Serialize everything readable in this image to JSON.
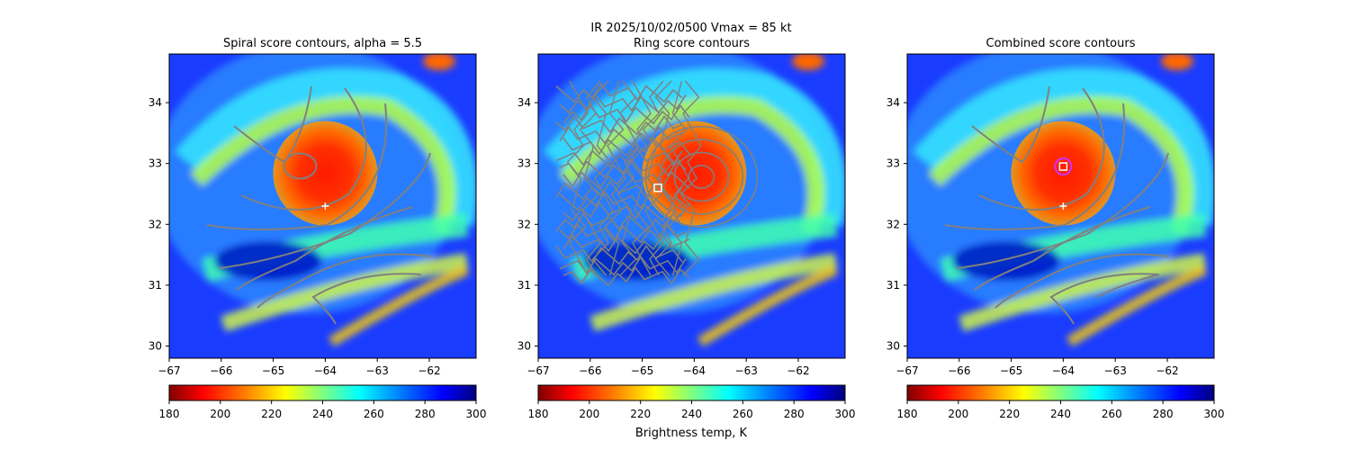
{
  "figure": {
    "suptitle_line1": "IR  2025/10/02/0500    Vmax = 85 kt",
    "colorbar_label": "Brightness temp, K"
  },
  "chart_data": [
    {
      "type": "heatmap",
      "title": "Spiral score contours, alpha =  5.5",
      "xlabel": "",
      "ylabel": "",
      "xlim": [
        -67,
        -61.1
      ],
      "ylim": [
        29.8,
        34.8
      ],
      "x_ticks": [
        -67,
        -66,
        -65,
        -64,
        -63,
        -62
      ],
      "y_ticks": [
        30,
        31,
        32,
        33,
        34
      ],
      "field": "IR brightness temperature (K)",
      "storm_center": [
        -64.0,
        32.9
      ],
      "markers": [
        {
          "kind": "plus",
          "x": -64.0,
          "y": 32.3,
          "color": "#ffffff"
        }
      ],
      "contour_color": "#808080",
      "colorbar": {
        "min": 180,
        "max": 300,
        "ticks": [
          180,
          200,
          220,
          240,
          260,
          280,
          300
        ],
        "colormap": "jet_r"
      }
    },
    {
      "type": "heatmap",
      "title": "Ring score contours",
      "xlabel": "",
      "ylabel": "",
      "xlim": [
        -67,
        -61.1
      ],
      "ylim": [
        29.8,
        34.8
      ],
      "x_ticks": [
        -67,
        -66,
        -65,
        -64,
        -63,
        -62
      ],
      "y_ticks": [
        30,
        31,
        32,
        33,
        34
      ],
      "field": "IR brightness temperature (K)",
      "storm_center": [
        -64.0,
        32.9
      ],
      "markers": [
        {
          "kind": "square",
          "x": -64.7,
          "y": 32.6,
          "color": "#ffffff"
        }
      ],
      "contour_color": "#808080",
      "colorbar": {
        "min": 180,
        "max": 300,
        "ticks": [
          180,
          200,
          220,
          240,
          260,
          280,
          300
        ],
        "colormap": "jet_r"
      }
    },
    {
      "type": "heatmap",
      "title": "Combined score contours",
      "xlabel": "",
      "ylabel": "",
      "xlim": [
        -67,
        -61.1
      ],
      "ylim": [
        29.8,
        34.8
      ],
      "x_ticks": [
        -67,
        -66,
        -65,
        -64,
        -63,
        -62
      ],
      "y_ticks": [
        30,
        31,
        32,
        33,
        34
      ],
      "field": "IR brightness temperature (K)",
      "storm_center": [
        -64.0,
        32.9
      ],
      "markers": [
        {
          "kind": "plus",
          "x": -64.0,
          "y": 32.3,
          "color": "#ffffff"
        },
        {
          "kind": "circle",
          "x": -64.0,
          "y": 32.95,
          "color": "#cc33ff"
        },
        {
          "kind": "square",
          "x": -64.0,
          "y": 32.95,
          "color": "#ffffff"
        }
      ],
      "contour_color": "#808080",
      "colorbar": {
        "min": 180,
        "max": 300,
        "ticks": [
          180,
          200,
          220,
          240,
          260,
          280,
          300
        ],
        "colormap": "jet_r"
      }
    }
  ]
}
